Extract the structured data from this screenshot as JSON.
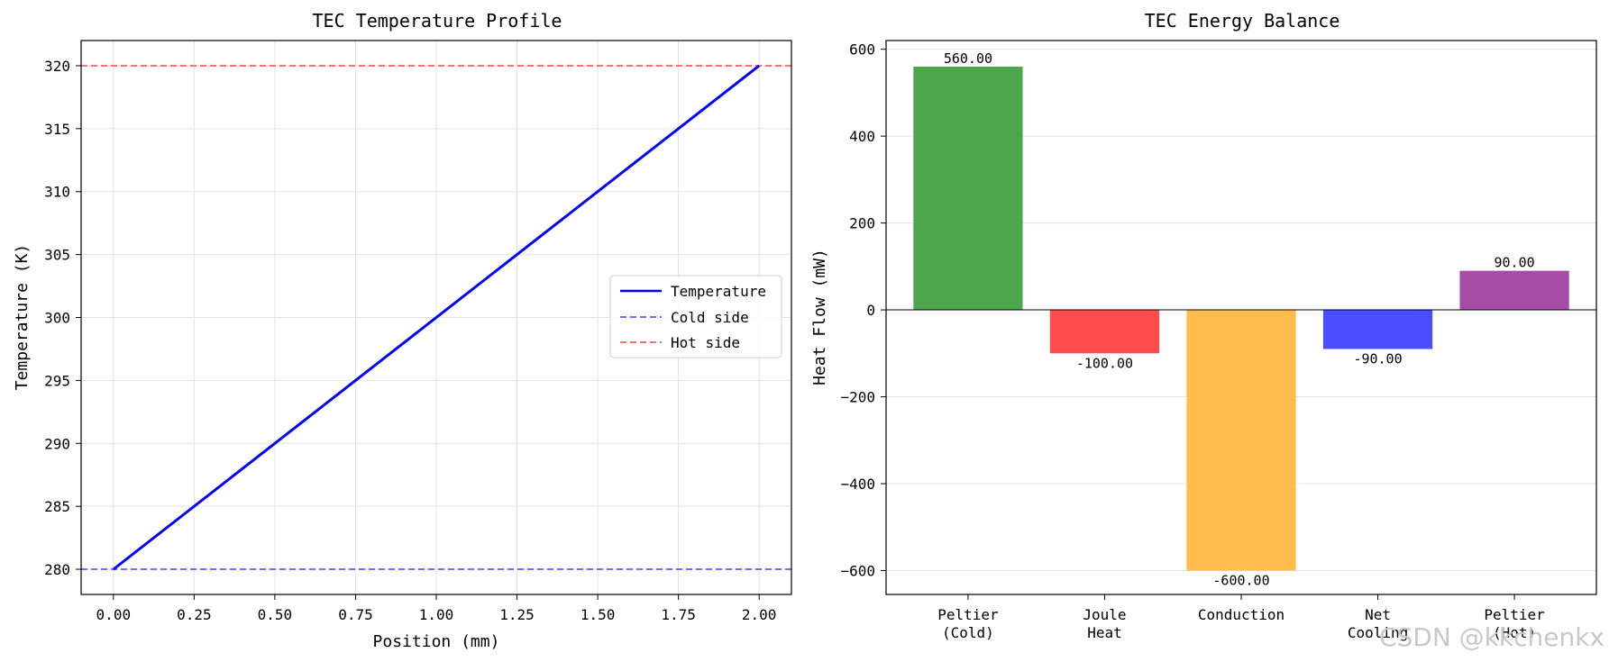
{
  "watermark": "CSDN @kkchenkx",
  "chart_data": [
    {
      "type": "line",
      "title": "TEC Temperature Profile",
      "xlabel": "Position (mm)",
      "ylabel": "Temperature (K)",
      "xlim": [
        -0.1,
        2.1
      ],
      "ylim": [
        278,
        322
      ],
      "xticks": [
        0.0,
        0.25,
        0.5,
        0.75,
        1.0,
        1.25,
        1.5,
        1.75,
        2.0
      ],
      "xtick_labels": [
        "0.00",
        "0.25",
        "0.50",
        "0.75",
        "1.00",
        "1.25",
        "1.50",
        "1.75",
        "2.00"
      ],
      "yticks": [
        280,
        285,
        290,
        295,
        300,
        305,
        310,
        315,
        320
      ],
      "ytick_labels": [
        "280",
        "285",
        "290",
        "295",
        "300",
        "305",
        "310",
        "315",
        "320"
      ],
      "grid": true,
      "legend_position": "center-right",
      "series": [
        {
          "name": "Temperature",
          "style": "solid",
          "color": "#0000ff",
          "x": [
            0.0,
            2.0
          ],
          "y": [
            280,
            320
          ]
        }
      ],
      "hlines": [
        {
          "name": "Cold side",
          "y": 280,
          "style": "dashed",
          "color": "#7070ff"
        },
        {
          "name": "Hot side",
          "y": 320,
          "style": "dashed",
          "color": "#ff7070"
        }
      ],
      "legend": [
        "Temperature",
        "Cold side",
        "Hot side"
      ]
    },
    {
      "type": "bar",
      "title": "TEC Energy Balance",
      "xlabel": "",
      "ylabel": "Heat Flow (mW)",
      "ylim": [
        -655,
        620
      ],
      "yticks": [
        -600,
        -400,
        -200,
        0,
        200,
        400,
        600
      ],
      "ytick_labels": [
        "−600",
        "−400",
        "−200",
        "0",
        "200",
        "400",
        "600"
      ],
      "grid": true,
      "categories": [
        [
          "Peltier",
          "(Cold)"
        ],
        [
          "Joule",
          "Heat"
        ],
        [
          "Conduction"
        ],
        [
          "Net",
          "Cooling"
        ],
        [
          "Peltier",
          "(Hot)"
        ]
      ],
      "values": [
        560,
        -100,
        -600,
        -90,
        90
      ],
      "value_labels": [
        "560.00",
        "-100.00",
        "-600.00",
        "-90.00",
        "90.00"
      ],
      "colors": [
        "#4ca64c",
        "#ff4c4c",
        "#ffbc4c",
        "#4c4cff",
        "#a64ca6"
      ]
    }
  ]
}
